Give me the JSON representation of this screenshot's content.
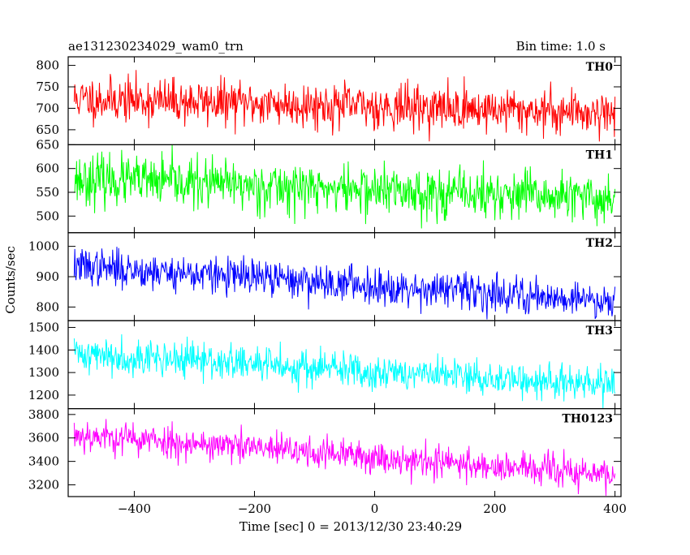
{
  "header": {
    "title": "ae131230234029_wam0_trn",
    "bin_time": "Bin time: 1.0 s"
  },
  "chart_data": {
    "type": "line",
    "ylabel": "Counts/sec",
    "xlabel": "Time [sec] 0 = 2013/12/30 23:40:29",
    "xlim": [
      -510,
      410
    ],
    "x_ticks": [
      -400,
      -200,
      0,
      200,
      400
    ],
    "x_tick_labels": [
      "−400",
      "−200",
      "0",
      "200",
      "400"
    ],
    "x_range": [
      -500,
      400
    ],
    "grid": false,
    "panels": [
      {
        "name": "TH0",
        "color": "#ff0000",
        "ylim": [
          615,
          820
        ],
        "y_ticks": [
          650,
          700,
          750,
          800
        ],
        "trend": {
          "start": 722,
          "end": 690
        },
        "noise_sd": 26,
        "seed": 11
      },
      {
        "name": "TH1",
        "color": "#00ff00",
        "ylim": [
          465,
          650
        ],
        "y_ticks": [
          500,
          550,
          600,
          650
        ],
        "trend": {
          "start": 578,
          "end": 535
        },
        "noise_sd": 26,
        "seed": 23
      },
      {
        "name": "TH2",
        "color": "#0000ff",
        "ylim": [
          755,
          1045
        ],
        "y_ticks": [
          800,
          900,
          1000
        ],
        "trend": {
          "start": 935,
          "end": 820
        },
        "noise_sd": 30,
        "seed": 37
      },
      {
        "name": "TH3",
        "color": "#00ffff",
        "ylim": [
          1140,
          1530
        ],
        "y_ticks": [
          1200,
          1300,
          1400,
          1500
        ],
        "trend": {
          "start": 1385,
          "end": 1240
        },
        "noise_sd": 40,
        "seed": 41
      },
      {
        "name": "TH0123",
        "color": "#ff00ff",
        "ylim": [
          3100,
          3850
        ],
        "y_ticks": [
          3200,
          3400,
          3600,
          3800
        ],
        "trend": {
          "start": 3630,
          "end": 3280
        },
        "noise_sd": 70,
        "seed": 53
      }
    ]
  }
}
